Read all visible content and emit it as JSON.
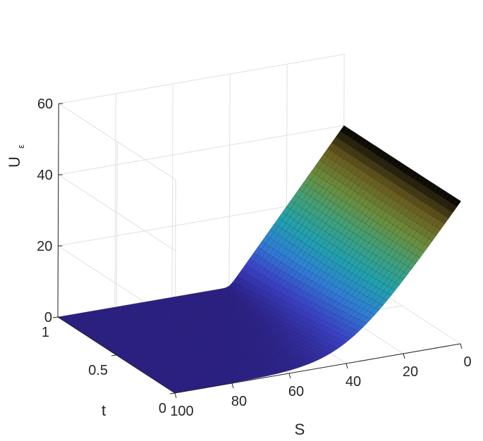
{
  "chart_data": {
    "type": "surface",
    "title": "",
    "xlabel": "S",
    "ylabel": "t",
    "zlabel": {
      "main": "U",
      "subscript": "ε"
    },
    "x_ticks": [
      "0",
      "20",
      "40",
      "60",
      "80",
      "100"
    ],
    "y_ticks": [
      "0",
      "0.5",
      "1"
    ],
    "z_ticks": [
      "0",
      "20",
      "40",
      "60"
    ],
    "xlim": [
      0,
      100
    ],
    "ylim": [
      0,
      1
    ],
    "zlim": [
      0,
      60
    ],
    "strike": 40,
    "grid": true,
    "colormap": "parula-dark",
    "colors": [
      "#2a1e88",
      "#3a40c8",
      "#2f7fd8",
      "#1fa2b0",
      "#3fa27a",
      "#6c8f3a",
      "#6a5a1c",
      "#000000"
    ],
    "sample_curve": {
      "S": [
        0,
        10,
        20,
        30,
        35,
        40,
        45,
        50,
        60,
        70,
        80,
        90,
        100
      ],
      "U_at_t0": [
        40,
        30,
        20,
        10,
        5.5,
        2.5,
        1.0,
        0.4,
        0.1,
        0.02,
        0,
        0,
        0
      ],
      "U_at_t1": [
        40,
        30,
        20,
        10,
        5,
        0.3,
        0,
        0,
        0,
        0,
        0,
        0,
        0
      ]
    }
  }
}
